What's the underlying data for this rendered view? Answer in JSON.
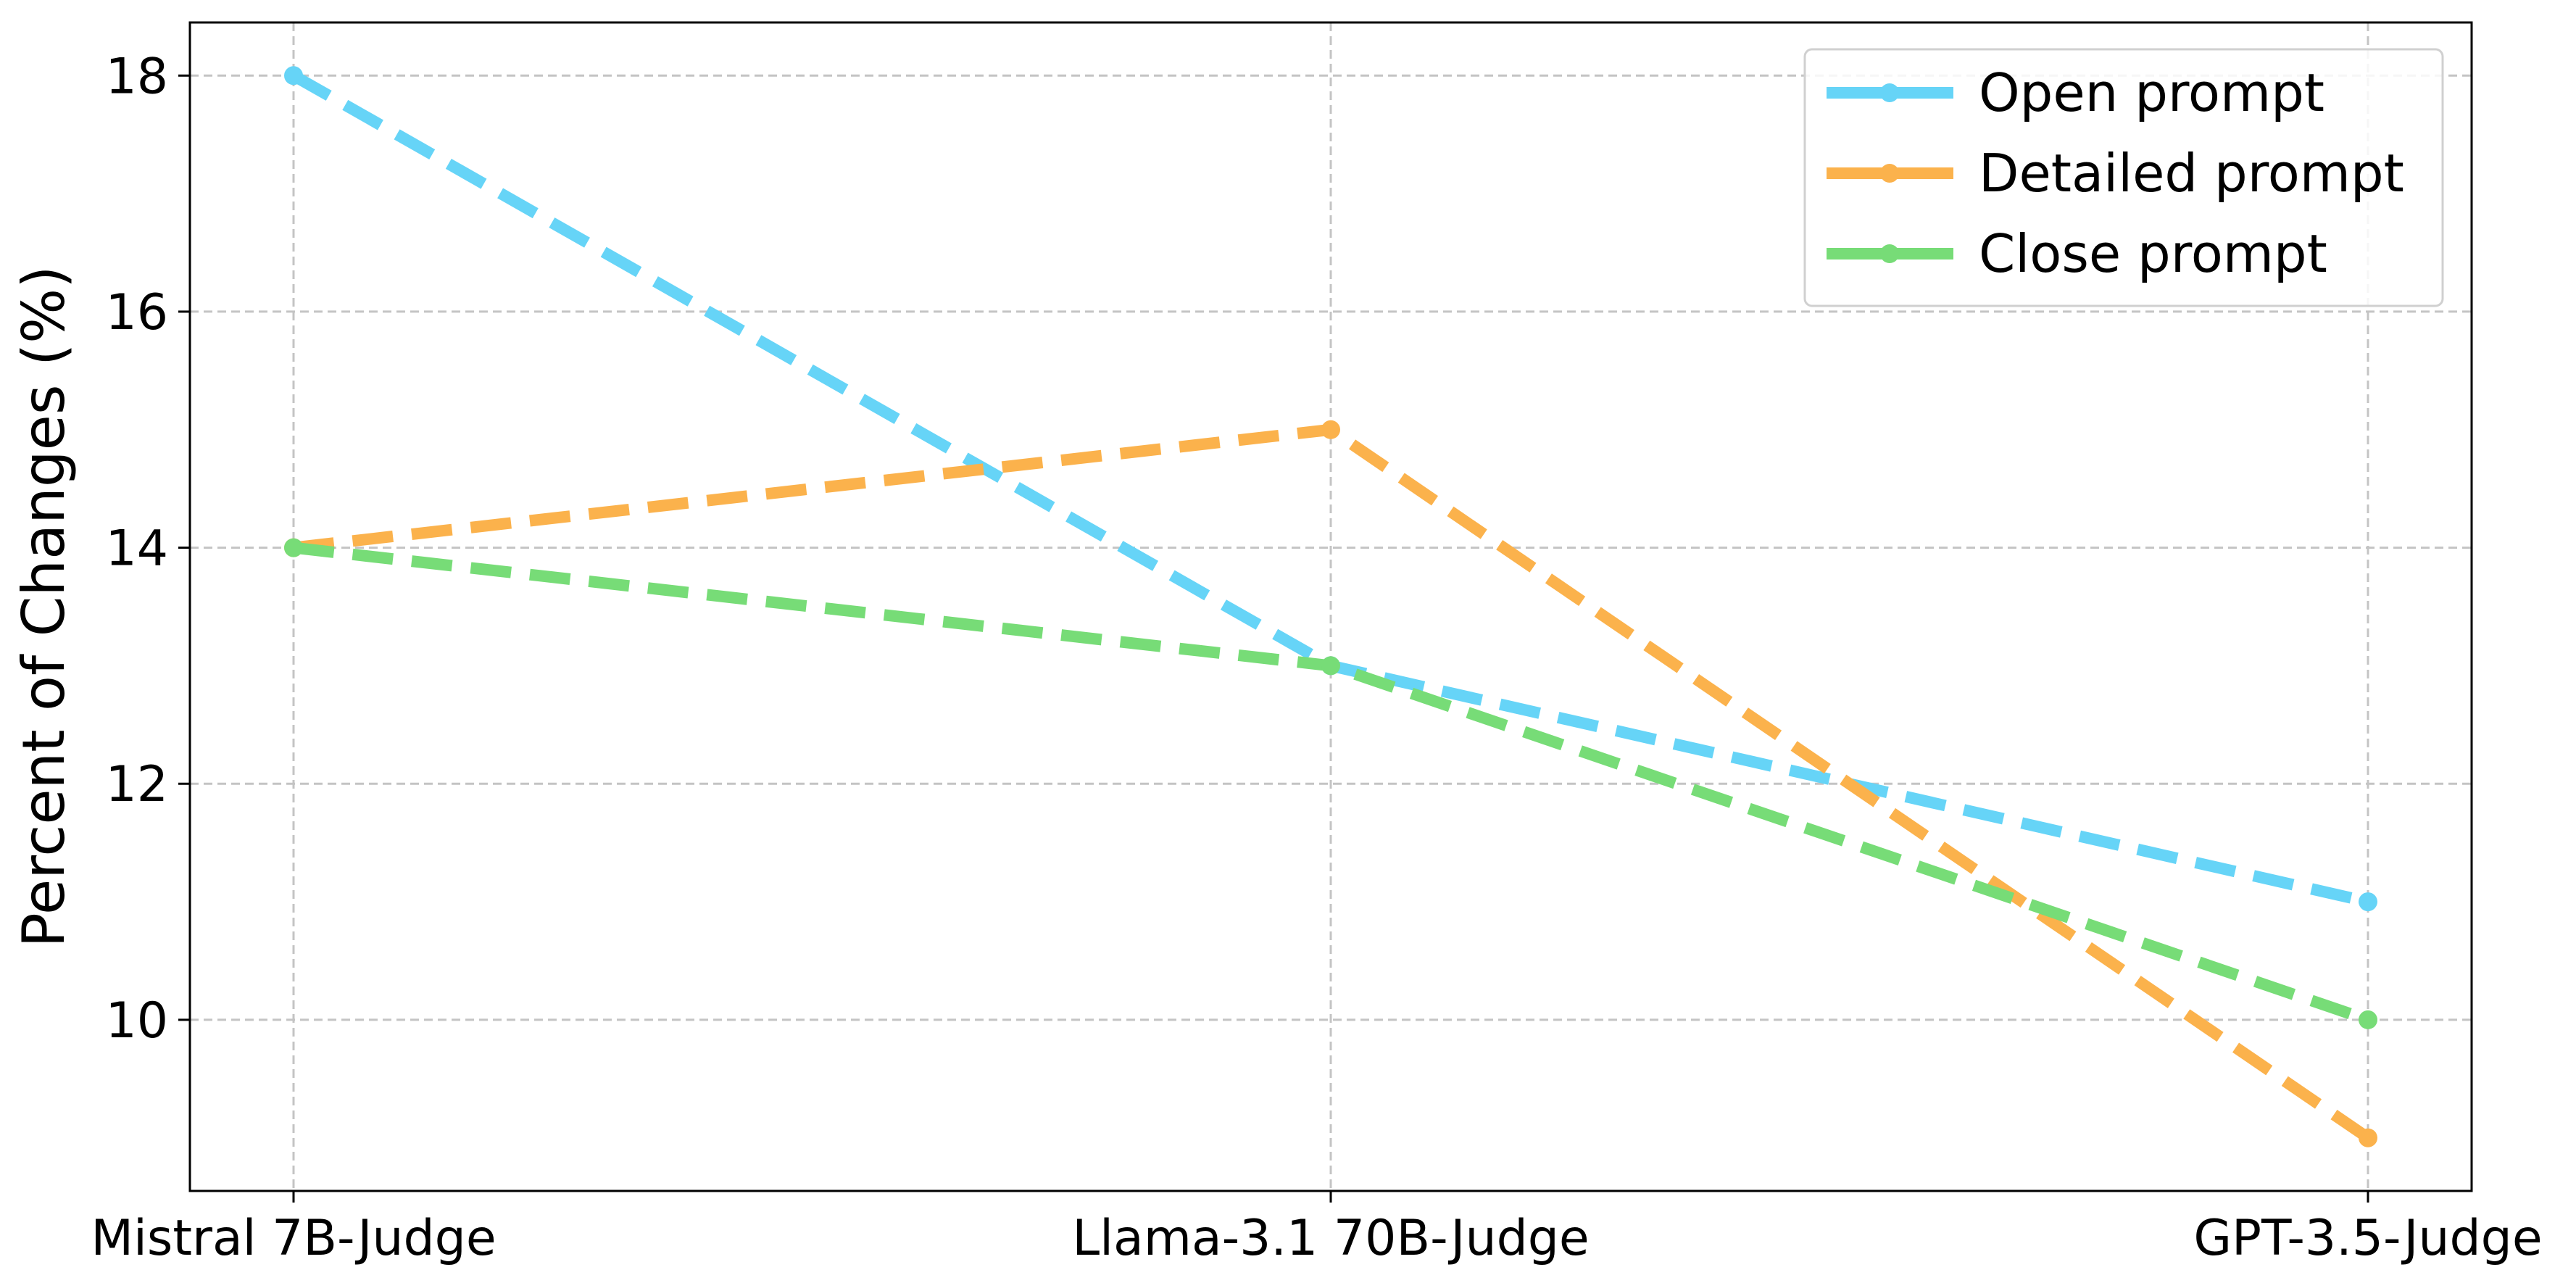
{
  "chart_data": {
    "type": "line",
    "title": "",
    "xlabel": "",
    "ylabel": "Percent of Changes (%)",
    "categories": [
      "Mistral 7B-Judge",
      "Llama-3.1 70B-Judge",
      "GPT-3.5-Judge"
    ],
    "ylim": [
      8.55,
      18.45
    ],
    "yticks": [
      10,
      12,
      14,
      16,
      18
    ],
    "grid": true,
    "legend_position": "top-right",
    "series": [
      {
        "name": "Open prompt",
        "values": [
          18,
          13,
          11
        ],
        "color": "#66d4f7",
        "line_style": "dashed",
        "marker": "circle"
      },
      {
        "name": "Detailed prompt",
        "values": [
          14,
          15,
          9
        ],
        "color": "#fbb24c",
        "line_style": "dashed",
        "marker": "circle"
      },
      {
        "name": "Close prompt",
        "values": [
          14,
          13,
          10
        ],
        "color": "#77dc77",
        "line_style": "dashed",
        "marker": "circle"
      }
    ]
  }
}
